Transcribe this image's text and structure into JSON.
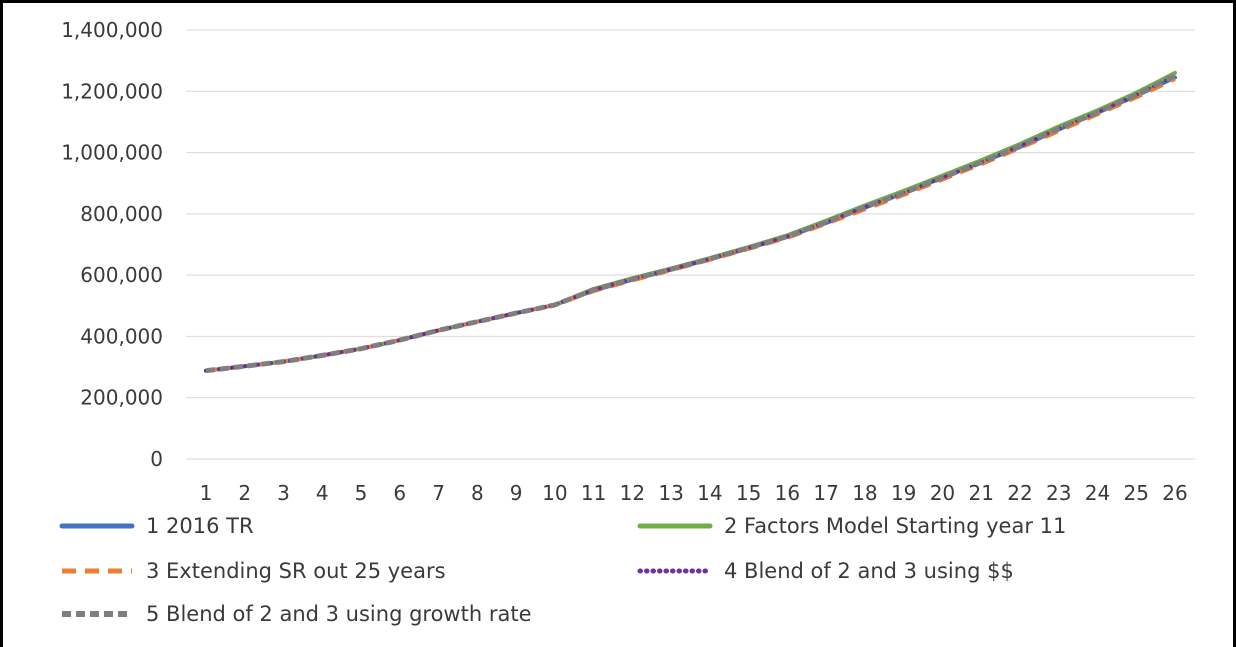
{
  "chart_data": {
    "type": "line",
    "title": "",
    "xlabel": "",
    "ylabel": "",
    "x": [
      1,
      2,
      3,
      4,
      5,
      6,
      7,
      8,
      9,
      10,
      11,
      12,
      13,
      14,
      15,
      16,
      17,
      18,
      19,
      20,
      21,
      22,
      23,
      24,
      25,
      26
    ],
    "x_tick_labels": [
      "1",
      "2",
      "3",
      "4",
      "5",
      "6",
      "7",
      "8",
      "9",
      "10",
      "11",
      "12",
      "13",
      "14",
      "15",
      "16",
      "17",
      "18",
      "19",
      "20",
      "21",
      "22",
      "23",
      "24",
      "25",
      "26"
    ],
    "ylim": [
      0,
      1400000
    ],
    "y_ticks": [
      0,
      200000,
      400000,
      600000,
      800000,
      1000000,
      1200000,
      1400000
    ],
    "y_tick_labels": [
      "0",
      "200,000",
      "400,000",
      "600,000",
      "800,000",
      "1,000,000",
      "1,200,000",
      "1,400,000"
    ],
    "grid": "horizontal",
    "legend_position": "bottom",
    "series": [
      {
        "name": "1 2016 TR",
        "color": "#4472C4",
        "dash": "solid",
        "values": [
          288000,
          303000,
          318000,
          338000,
          360000,
          388000,
          420000,
          448000,
          476000,
          503000,
          550000,
          585000,
          618000,
          652000,
          688000,
          725000,
          770000,
          820000,
          868000,
          918000,
          968000,
          1018000,
          1075000,
          1130000,
          1185000,
          1245000
        ]
      },
      {
        "name": "2 Factors Model Starting year 11",
        "color": "#70AD47",
        "dash": "solid",
        "values": [
          288000,
          303000,
          318000,
          338000,
          360000,
          388000,
          420000,
          448000,
          476000,
          503000,
          555000,
          590000,
          622000,
          656000,
          692000,
          730000,
          778000,
          828000,
          875000,
          925000,
          975000,
          1028000,
          1085000,
          1138000,
          1195000,
          1260000
        ]
      },
      {
        "name": "3 Extending SR out 25 years",
        "color": "#ED7D31",
        "dash": "long",
        "values": [
          288000,
          303000,
          318000,
          338000,
          360000,
          388000,
          420000,
          448000,
          476000,
          503000,
          548000,
          583000,
          616000,
          650000,
          686000,
          722000,
          768000,
          815000,
          862000,
          912000,
          962000,
          1015000,
          1070000,
          1125000,
          1180000,
          1240000
        ]
      },
      {
        "name": "4 Blend of 2 and 3 using $$",
        "color": "#7030A0",
        "dash": "dot",
        "values": [
          288000,
          303000,
          318000,
          338000,
          360000,
          388000,
          420000,
          448000,
          476000,
          503000,
          552000,
          587000,
          619000,
          653000,
          689000,
          726000,
          773000,
          822000,
          868000,
          918000,
          968000,
          1021000,
          1078000,
          1131000,
          1188000,
          1250000
        ]
      },
      {
        "name": "5 Blend of 2 and 3 using growth rate",
        "color": "#7F7F7F",
        "dash": "dash",
        "values": [
          288000,
          303000,
          318000,
          338000,
          360000,
          388000,
          420000,
          448000,
          476000,
          503000,
          552000,
          587000,
          619000,
          653000,
          689000,
          726000,
          773000,
          822000,
          868000,
          918000,
          968000,
          1021000,
          1078000,
          1131000,
          1188000,
          1252000
        ]
      }
    ]
  }
}
